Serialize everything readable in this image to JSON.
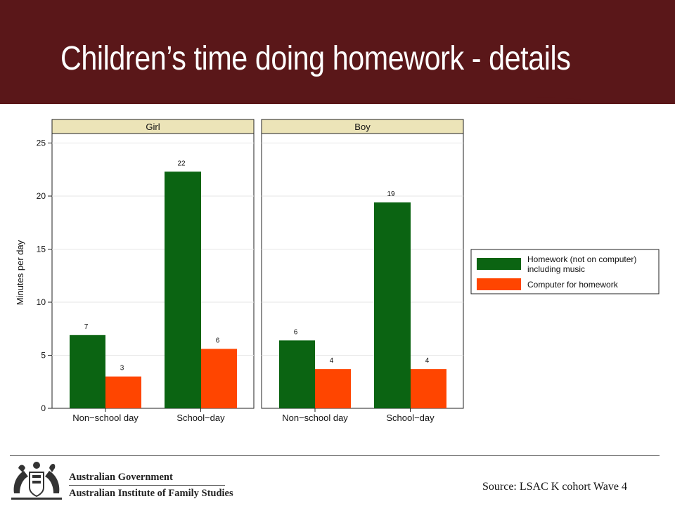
{
  "slide": {
    "title": "Children’s time doing homework - details",
    "source": "Source: LSAC K cohort Wave 4",
    "org_line1": "Australian Government",
    "org_line2": "Australian Institute of Family Studies"
  },
  "colors": {
    "banner": "#5a1719",
    "homework": "#0b6412",
    "computer": "#ff4500",
    "panel_header": "#ece4b8"
  },
  "chart_data": {
    "type": "bar",
    "ylabel": "Minutes per day",
    "ylim": [
      0,
      27.5
    ],
    "yticks": [
      0,
      5,
      10,
      15,
      20,
      25
    ],
    "categories": [
      "Non−school day",
      "School−day"
    ],
    "grid": true,
    "legend_position": "right",
    "panels": [
      {
        "title": "Girl",
        "series": [
          {
            "name": "Homework (not on computer) including music",
            "values": [
              6.9,
              22.3
            ],
            "labels": [
              "7",
              "22"
            ]
          },
          {
            "name": "Computer for homework",
            "values": [
              3.0,
              5.6
            ],
            "labels": [
              "3",
              "6"
            ]
          }
        ]
      },
      {
        "title": "Boy",
        "series": [
          {
            "name": "Homework (not on computer) including music",
            "values": [
              6.4,
              19.4
            ],
            "labels": [
              "6",
              "19"
            ]
          },
          {
            "name": "Computer for homework",
            "values": [
              3.7,
              3.7
            ],
            "labels": [
              "4",
              "4"
            ]
          }
        ]
      }
    ],
    "legend": [
      {
        "line1": "Homework (not on computer)",
        "line2": "including music"
      },
      {
        "line1": "Computer for homework",
        "line2": ""
      }
    ]
  }
}
